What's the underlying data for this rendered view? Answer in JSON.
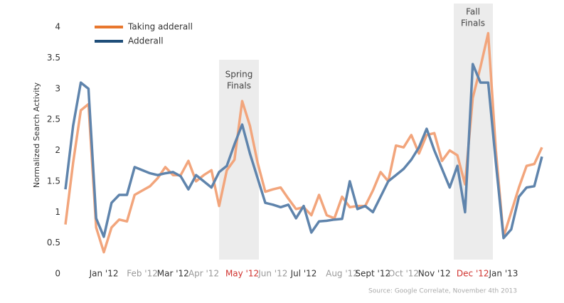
{
  "chart_data": {
    "type": "line",
    "y_label": "Normalized Search Activity",
    "source": "Source: Google Correlate, November 4th 2013",
    "annotations": [
      [
        "Spring",
        "Finals"
      ],
      [
        "Fall",
        "Finals"
      ]
    ],
    "categories": [
      null,
      null,
      null,
      null,
      null,
      "Jan '12",
      null,
      null,
      null,
      null,
      "Feb '12",
      null,
      null,
      null,
      "Mar '12",
      null,
      null,
      null,
      "Apr '12",
      null,
      null,
      null,
      null,
      "May '12",
      null,
      null,
      null,
      "Jun '12",
      null,
      null,
      null,
      "Jul '12",
      null,
      null,
      null,
      null,
      "Aug '12",
      null,
      null,
      null,
      "Sept '12",
      null,
      null,
      null,
      "Oct '12",
      null,
      null,
      null,
      "Nov '12",
      null,
      null,
      null,
      null,
      "Dec '12",
      null,
      null,
      null,
      "Jan '13",
      null,
      null,
      null,
      null,
      null
    ],
    "category_colors": [
      null,
      null,
      null,
      null,
      null,
      "#333333",
      null,
      null,
      null,
      null,
      "#999999",
      null,
      null,
      null,
      "#333333",
      null,
      null,
      null,
      "#999999",
      null,
      null,
      null,
      null,
      "#d0312d",
      null,
      null,
      null,
      "#999999",
      null,
      null,
      null,
      "#333333",
      null,
      null,
      null,
      null,
      "#999999",
      null,
      null,
      null,
      "#333333",
      null,
      null,
      null,
      "#999999",
      null,
      null,
      null,
      "#333333",
      null,
      null,
      null,
      null,
      "#d0312d",
      null,
      null,
      null,
      "#333333",
      null,
      null,
      null,
      null,
      null
    ],
    "series": [
      {
        "name": "Taking adderall",
        "color": "#f2a57c",
        "legend_color": "#e8772e",
        "values": [
          0.8,
          1.8,
          2.65,
          2.75,
          0.75,
          0.35,
          0.75,
          0.88,
          0.85,
          1.28,
          1.35,
          1.42,
          1.55,
          1.73,
          1.6,
          1.6,
          1.83,
          1.5,
          1.6,
          1.68,
          1.1,
          1.68,
          1.85,
          2.8,
          2.4,
          1.8,
          1.33,
          1.37,
          1.4,
          1.22,
          1.05,
          1.08,
          0.95,
          1.28,
          0.95,
          0.9,
          1.25,
          1.08,
          1.1,
          1.1,
          1.35,
          1.65,
          1.5,
          2.08,
          2.05,
          2.25,
          1.95,
          2.25,
          2.28,
          1.83,
          2.0,
          1.92,
          1.45,
          2.85,
          3.35,
          3.9,
          2.0,
          0.6,
          1.0,
          1.4,
          1.75,
          1.78,
          2.05
        ]
      },
      {
        "name": "Adderall",
        "color": "#5f84ac",
        "legend_color": "#1f4e79",
        "values": [
          1.37,
          2.4,
          3.1,
          3.0,
          0.9,
          0.6,
          1.15,
          1.28,
          1.28,
          1.73,
          1.68,
          1.63,
          1.6,
          1.63,
          1.65,
          1.58,
          1.37,
          1.6,
          1.5,
          1.4,
          1.65,
          1.75,
          2.1,
          2.42,
          1.95,
          1.55,
          1.15,
          1.12,
          1.08,
          1.12,
          0.9,
          1.1,
          0.67,
          0.85,
          0.86,
          0.88,
          0.89,
          1.5,
          1.05,
          1.1,
          1.0,
          1.25,
          1.5,
          1.6,
          1.7,
          1.85,
          2.05,
          2.35,
          2.0,
          1.7,
          1.4,
          1.75,
          1.0,
          3.4,
          3.1,
          3.1,
          1.8,
          0.58,
          0.72,
          1.25,
          1.4,
          1.42,
          1.9
        ]
      }
    ],
    "ylim": [
      0,
      4
    ],
    "yticks": [
      0,
      0.5,
      1,
      1.5,
      2,
      2.5,
      3,
      3.5,
      4
    ],
    "grid": false
  }
}
